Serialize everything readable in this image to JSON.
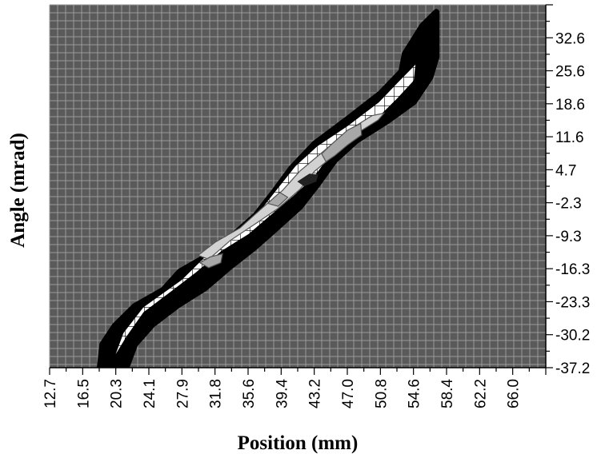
{
  "chart_data": {
    "type": "heatmap",
    "title": "",
    "xlabel": "Position (mm)",
    "ylabel": "Angle (mrad)",
    "x_ticks": [
      "12.7",
      "16.5",
      "20.3",
      "24.1",
      "27.9",
      "31.8",
      "35.6",
      "39.4",
      "43.2",
      "47.0",
      "50.8",
      "54.6",
      "58.4",
      "62.2",
      "66.0"
    ],
    "y_ticks": [
      "32.6",
      "25.6",
      "18.6",
      "11.6",
      "4.7",
      "-2.3",
      "-9.3",
      "-16.3",
      "-23.3",
      "-30.2",
      "-37.2"
    ],
    "xlim": [
      12.7,
      69.8
    ],
    "ylim": [
      -37.2,
      36.1
    ],
    "grid": true,
    "colors": {
      "background": "#5a5a5a",
      "grid_line": "#9a9a9a",
      "outer_contour": "#000000",
      "hatched_contour": "#ffffff",
      "inner_contour": "#d2d2d2",
      "core_contour": "#a8a8a8",
      "peak": "#222222"
    },
    "contours": [
      {
        "level": "outer",
        "fill": "#000000",
        "points": [
          [
            18.5,
            -37.2
          ],
          [
            18.8,
            -32.5
          ],
          [
            20.2,
            -28.8
          ],
          [
            22.5,
            -24.8
          ],
          [
            25.8,
            -21.5
          ],
          [
            27.7,
            -17.8
          ],
          [
            30.2,
            -15.3
          ],
          [
            33.5,
            -11.0
          ],
          [
            36.4,
            -6.5
          ],
          [
            38.5,
            -1.8
          ],
          [
            40.5,
            3.0
          ],
          [
            43.2,
            8.0
          ],
          [
            47.0,
            13.0
          ],
          [
            50.8,
            18.2
          ],
          [
            53.2,
            22.6
          ],
          [
            53.6,
            26.2
          ],
          [
            55.6,
            31.8
          ],
          [
            57.2,
            34.6
          ],
          [
            57.2,
            25.6
          ],
          [
            56.5,
            21.5
          ],
          [
            54.6,
            16.5
          ],
          [
            51.5,
            12.6
          ],
          [
            48.0,
            8.7
          ],
          [
            45.5,
            4.7
          ],
          [
            43.5,
            -0.2
          ],
          [
            41.5,
            -4.7
          ],
          [
            38.6,
            -9.3
          ],
          [
            36.2,
            -13.0
          ],
          [
            33.3,
            -17.0
          ],
          [
            30.5,
            -21.2
          ],
          [
            27.5,
            -24.5
          ],
          [
            24.5,
            -28.5
          ],
          [
            22.5,
            -32.5
          ],
          [
            21.5,
            -37.2
          ]
        ]
      },
      {
        "level": "hatched",
        "fill": "#ffffff",
        "points": [
          [
            20.3,
            -34.5
          ],
          [
            21.2,
            -30.2
          ],
          [
            23.5,
            -25.0
          ],
          [
            27.9,
            -19.5
          ],
          [
            30.5,
            -15.0
          ],
          [
            33.5,
            -11.0
          ],
          [
            36.5,
            -6.5
          ],
          [
            38.5,
            -2.0
          ],
          [
            41.0,
            3.5
          ],
          [
            43.5,
            7.5
          ],
          [
            47.0,
            11.6
          ],
          [
            50.6,
            16.4
          ],
          [
            53.0,
            20.8
          ],
          [
            54.8,
            24.0
          ],
          [
            54.6,
            20.8
          ],
          [
            52.7,
            17.2
          ],
          [
            50.8,
            13.9
          ],
          [
            47.8,
            10.2
          ],
          [
            45.2,
            6.4
          ],
          [
            43.2,
            1.5
          ],
          [
            40.9,
            -2.3
          ],
          [
            37.8,
            -6.9
          ],
          [
            35.6,
            -10.2
          ],
          [
            32.5,
            -13.6
          ],
          [
            29.5,
            -18.0
          ],
          [
            26.9,
            -21.5
          ],
          [
            23.5,
            -26.0
          ],
          [
            21.5,
            -31.0
          ]
        ]
      },
      {
        "level": "inner",
        "fill": "#d2d2d2",
        "points": [
          [
            29.8,
            -14.5
          ],
          [
            31.8,
            -11.8
          ],
          [
            34.6,
            -9.0
          ],
          [
            37.0,
            -5.2
          ],
          [
            39.5,
            -1.4
          ],
          [
            41.5,
            2.5
          ],
          [
            44.0,
            6.2
          ],
          [
            47.0,
            10.6
          ],
          [
            49.8,
            13.7
          ],
          [
            51.2,
            14.2
          ],
          [
            50.5,
            12.8
          ],
          [
            48.5,
            10.6
          ],
          [
            46.0,
            6.5
          ],
          [
            43.2,
            2.5
          ],
          [
            41.5,
            -1.2
          ],
          [
            39.0,
            -5.0
          ],
          [
            36.5,
            -8.0
          ],
          [
            33.5,
            -11.5
          ],
          [
            31.0,
            -15.3
          ]
        ]
      },
      {
        "level": "core",
        "fill": "#a8a8a8",
        "points": [
          [
            45.2,
            8.0
          ],
          [
            47.0,
            10.8
          ],
          [
            48.5,
            12.1
          ],
          [
            48.6,
            9.8
          ],
          [
            47.0,
            7.8
          ],
          [
            45.5,
            5.6
          ],
          [
            44.5,
            4.4
          ],
          [
            44.0,
            6.0
          ]
        ]
      },
      {
        "level": "core",
        "fill": "#a8a8a8",
        "points": [
          [
            30.0,
            -16.0
          ],
          [
            31.2,
            -14.8
          ],
          [
            32.6,
            -14.2
          ],
          [
            32.4,
            -16.0
          ],
          [
            31.0,
            -17.0
          ]
        ]
      },
      {
        "level": "core",
        "fill": "#a8a8a8",
        "points": [
          [
            37.8,
            -4.0
          ],
          [
            39.2,
            -1.8
          ],
          [
            40.1,
            -2.8
          ],
          [
            39.0,
            -4.6
          ]
        ]
      },
      {
        "level": "peak",
        "fill": "#222222",
        "points": [
          [
            41.2,
            0.4
          ],
          [
            42.6,
            2.0
          ],
          [
            43.6,
            1.8
          ],
          [
            43.4,
            0.4
          ],
          [
            42.0,
            -0.6
          ]
        ]
      }
    ]
  }
}
